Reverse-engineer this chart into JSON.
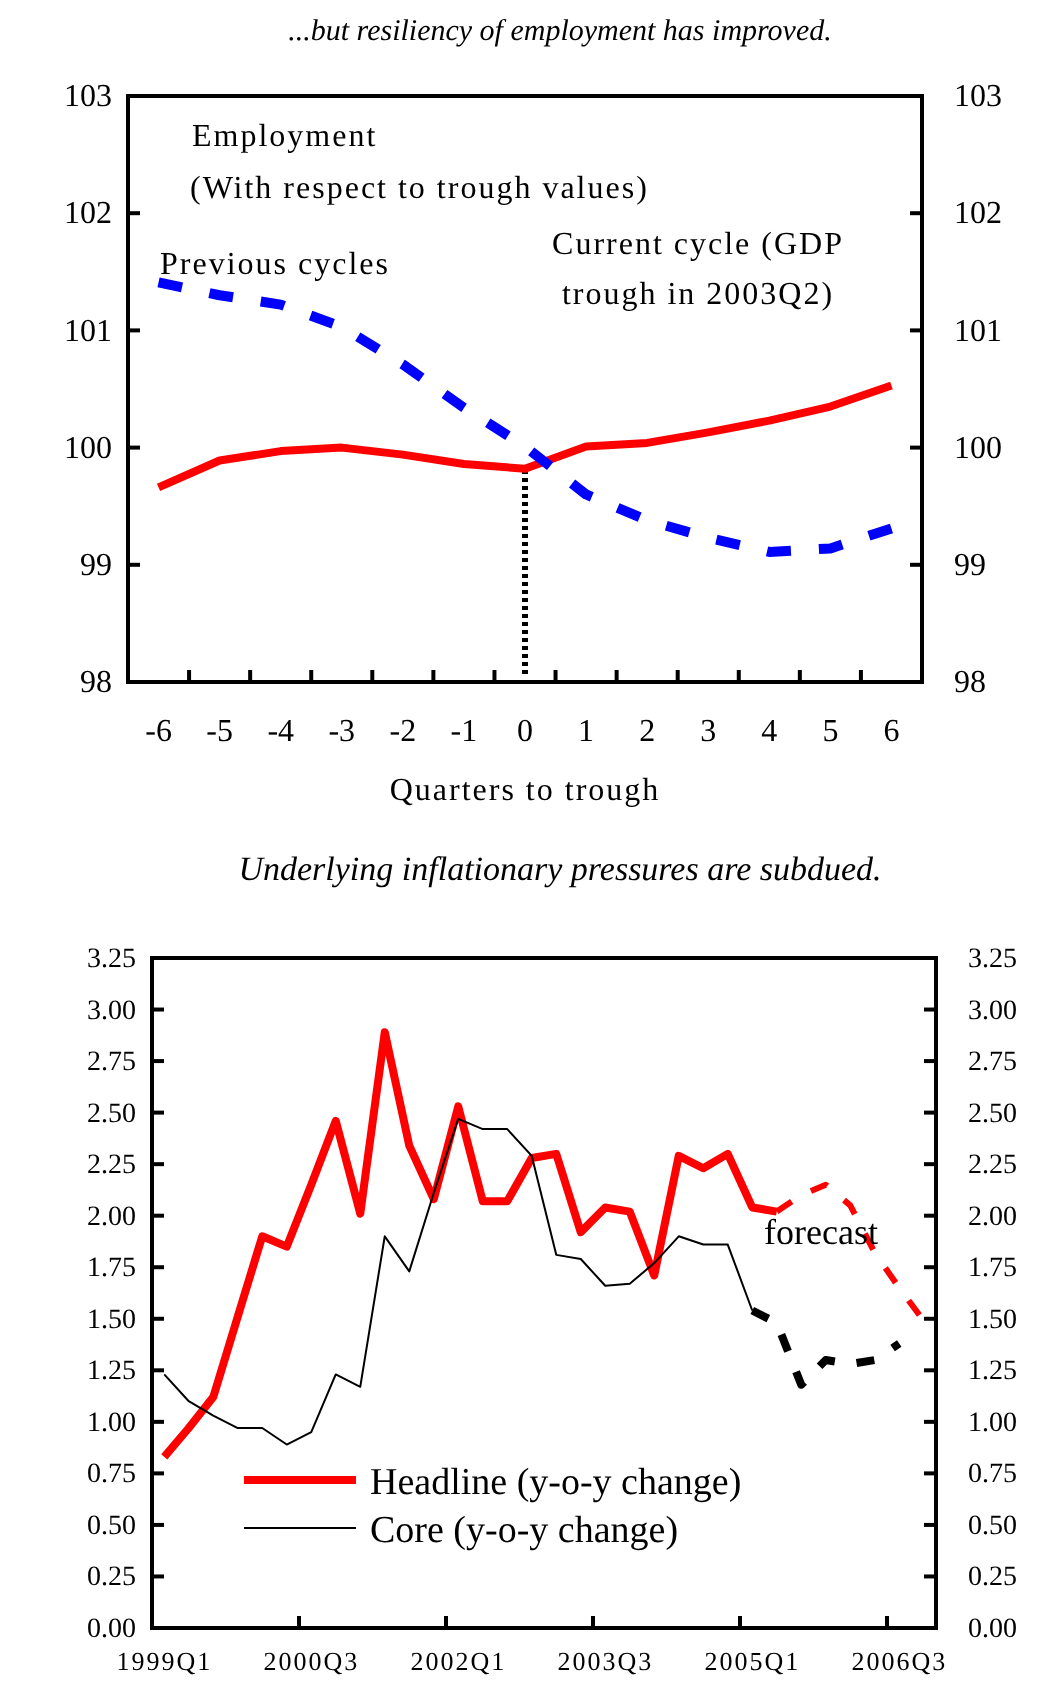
{
  "chart_data": [
    {
      "type": "line",
      "title": "...but resiliency of employment has improved.",
      "xlabel": "Quarters to trough",
      "categories": [
        "-6",
        "-5",
        "-4",
        "-3",
        "-2",
        "-1",
        "0",
        "1",
        "2",
        "3",
        "4",
        "5",
        "6"
      ],
      "series": [
        {
          "name": "Current cycle (GDP trough in 2003Q2)",
          "color": "#ff0000",
          "line_style": "solid",
          "values": [
            99.66,
            99.89,
            99.97,
            100.0,
            99.94,
            99.86,
            99.82,
            100.01,
            100.04,
            100.13,
            100.23,
            100.35,
            100.53
          ]
        },
        {
          "name": "Previous cycles",
          "color": "#0000ff",
          "line_style": "dashed",
          "values": [
            101.41,
            101.3,
            101.22,
            101.03,
            100.71,
            100.34,
            100.01,
            99.6,
            99.38,
            99.23,
            99.11,
            99.14,
            99.31
          ]
        }
      ],
      "ylim": [
        98,
        103
      ],
      "yticks": [
        98,
        99,
        100,
        101,
        102,
        103
      ],
      "y2lim": [
        98,
        103
      ],
      "y2ticks": [
        98,
        99,
        100,
        101,
        102,
        103
      ],
      "ref_lines": [
        {
          "axis": "x",
          "value": "0",
          "color": "#000000",
          "line_style": "dotted"
        }
      ],
      "annotations": [
        "Employment",
        "(With respect to trough values)"
      ]
    },
    {
      "type": "line",
      "title": "Underlying inflationary pressures are subdued.",
      "categories": [
        "1999Q1",
        null,
        null,
        null,
        null,
        null,
        "2000Q3",
        null,
        null,
        null,
        null,
        null,
        "2002Q1",
        null,
        null,
        null,
        null,
        null,
        "2003Q3",
        null,
        null,
        null,
        null,
        null,
        "2005Q1",
        null,
        null,
        null,
        null,
        null,
        "2006Q3",
        null
      ],
      "series": [
        {
          "name": "Headline (y-o-y change)",
          "color": "#ff0000",
          "line_style": "solid",
          "values": [
            0.83,
            0.97,
            1.12,
            1.51,
            1.9,
            1.85,
            2.15,
            2.46,
            2.01,
            2.89,
            2.34,
            2.08,
            2.53,
            2.07,
            2.07,
            2.28,
            2.3,
            1.92,
            2.04,
            2.02,
            1.71,
            2.29,
            2.23,
            2.3,
            2.04,
            2.02,
            null,
            null,
            null,
            null,
            null,
            null
          ]
        },
        {
          "color": "#ff0000",
          "line_style": "dashed",
          "values": [
            null,
            null,
            null,
            null,
            null,
            null,
            null,
            null,
            null,
            null,
            null,
            null,
            null,
            null,
            null,
            null,
            null,
            null,
            null,
            null,
            null,
            null,
            null,
            null,
            null,
            2.02,
            2.1,
            2.15,
            2.05,
            1.82,
            1.65,
            1.49
          ]
        },
        {
          "name": "Core (y-o-y change)",
          "color": "#000000",
          "line_style": "solid",
          "values": [
            1.23,
            1.1,
            1.03,
            0.97,
            0.97,
            0.89,
            0.95,
            1.23,
            1.17,
            1.9,
            1.73,
            2.11,
            2.47,
            2.42,
            2.42,
            2.29,
            1.81,
            1.79,
            1.66,
            1.67,
            1.77,
            1.9,
            1.86,
            1.86,
            1.54,
            null,
            null,
            null,
            null,
            null,
            null,
            null
          ]
        },
        {
          "color": "#000000",
          "line_style": "dashed",
          "values": [
            null,
            null,
            null,
            null,
            null,
            null,
            null,
            null,
            null,
            null,
            null,
            null,
            null,
            null,
            null,
            null,
            null,
            null,
            null,
            null,
            null,
            null,
            null,
            null,
            1.54,
            1.48,
            1.18,
            1.3,
            1.28,
            1.3,
            1.38,
            null
          ]
        }
      ],
      "ylim": [
        0,
        3.25
      ],
      "yticks": [
        {
          "value": 0,
          "label": "0.00"
        },
        {
          "value": 0.25,
          "label": "0.25"
        },
        {
          "value": 0.5,
          "label": "0.50"
        },
        {
          "value": 0.75,
          "label": "0.75"
        },
        {
          "value": 1,
          "label": "1.00"
        },
        {
          "value": 1.25,
          "label": "1.25"
        },
        {
          "value": 1.5,
          "label": "1.50"
        },
        {
          "value": 1.75,
          "label": "1.75"
        },
        {
          "value": 2,
          "label": "2.00"
        },
        {
          "value": 2.25,
          "label": "2.25"
        },
        {
          "value": 2.5,
          "label": "2.50"
        },
        {
          "value": 2.75,
          "label": "2.75"
        },
        {
          "value": 3,
          "label": "3.00"
        },
        {
          "value": 3.25,
          "label": "3.25"
        }
      ],
      "y2lim": [
        0,
        3.25
      ],
      "y2ticks": [
        {
          "value": 0,
          "label": "0.00"
        },
        {
          "value": 0.25,
          "label": "0.25"
        },
        {
          "value": 0.5,
          "label": "0.50"
        },
        {
          "value": 0.75,
          "label": "0.75"
        },
        {
          "value": 1,
          "label": "1.00"
        },
        {
          "value": 1.25,
          "label": "1.25"
        },
        {
          "value": 1.5,
          "label": "1.50"
        },
        {
          "value": 1.75,
          "label": "1.75"
        },
        {
          "value": 2,
          "label": "2.00"
        },
        {
          "value": 2.25,
          "label": "2.25"
        },
        {
          "value": 2.5,
          "label": "2.50"
        },
        {
          "value": 2.75,
          "label": "2.75"
        },
        {
          "value": 3,
          "label": "3.00"
        },
        {
          "value": 3.25,
          "label": "3.25"
        }
      ],
      "legend": "bottom",
      "annotations": [
        "forecast"
      ]
    }
  ]
}
